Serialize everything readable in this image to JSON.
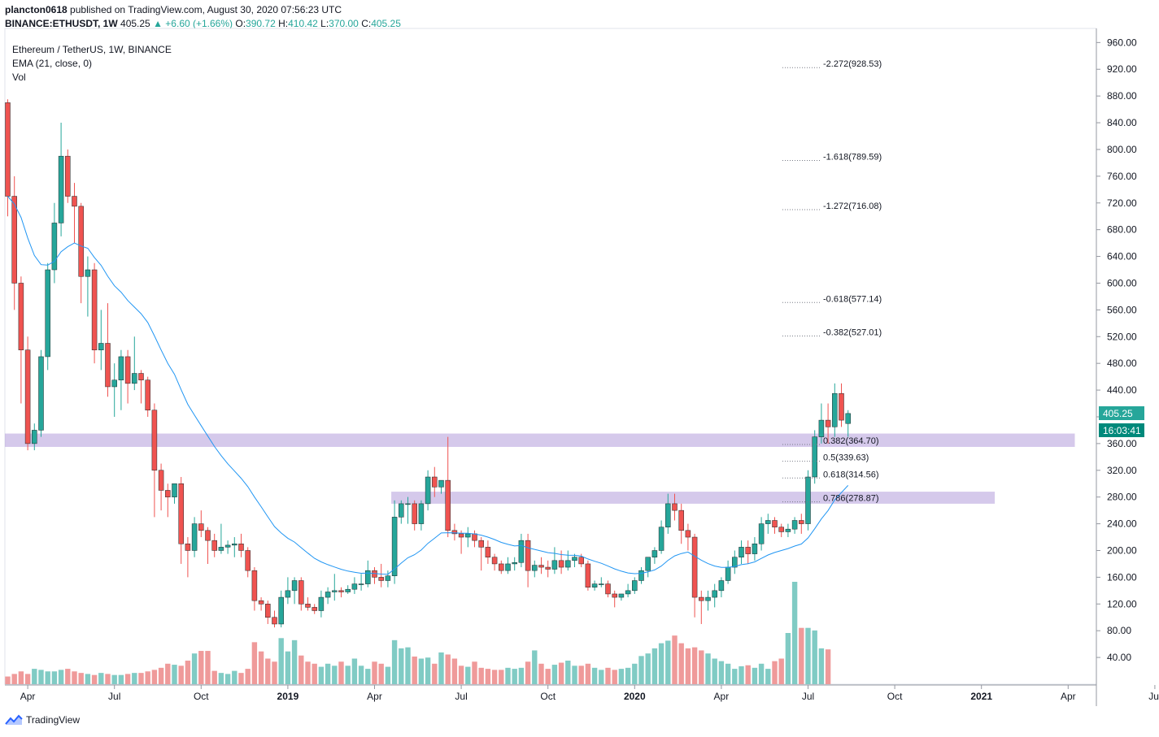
{
  "header": {
    "author": "plancton0618",
    "published_text": "published on TradingView.com, August 30, 2020 07:56:23 UTC",
    "symbol": "BINANCE:ETHUSDT, 1W",
    "last": "405.25",
    "change": "+6.60 (+1.66%)",
    "o_label": "O:",
    "o_value": "390.72",
    "h_label": "H:",
    "h_value": "410.42",
    "l_label": "L:",
    "l_value": "370.00",
    "c_label": "C:",
    "c_value": "405.25"
  },
  "legend": {
    "title": "Ethereum / TetherUS, 1W, BINANCE",
    "ema": "EMA (21, close, 0)",
    "vol": "Vol"
  },
  "price_badge": "405.25",
  "time_badge": "16:03:41",
  "footer": {
    "brand": "TradingView"
  },
  "colors": {
    "up": "#26a69a",
    "down": "#ef5350",
    "ema": "#2196f3",
    "zone": "#b39ddb",
    "upvol": "#80cbc4",
    "downvol": "#ef9a9a"
  },
  "chart_data": {
    "type": "candlestick",
    "y_ticks": [
      40,
      80,
      120,
      160,
      200,
      240,
      280,
      320,
      360,
      400,
      440,
      480,
      520,
      560,
      600,
      640,
      680,
      720,
      760,
      800,
      840,
      880,
      920,
      960
    ],
    "y_tick_labels": [
      "40.00",
      "80.00",
      "120.00",
      "160.00",
      "200.00",
      "240.00",
      "280.00",
      "320.00",
      "360.00",
      "400.00",
      "440.00",
      "480.00",
      "520.00",
      "560.00",
      "600.00",
      "640.00",
      "680.00",
      "720.00",
      "760.00",
      "800.00",
      "840.00",
      "880.00",
      "920.00",
      "960.00"
    ],
    "ylim": [
      0,
      975
    ],
    "x_ticks": [
      {
        "label": "Apr",
        "week": 3
      },
      {
        "label": "Jul",
        "week": 16
      },
      {
        "label": "Oct",
        "week": 29
      },
      {
        "label": "2019",
        "week": 42,
        "bold": true
      },
      {
        "label": "Apr",
        "week": 55
      },
      {
        "label": "Jul",
        "week": 68
      },
      {
        "label": "Oct",
        "week": 81
      },
      {
        "label": "2020",
        "week": 94,
        "bold": true
      },
      {
        "label": "Apr",
        "week": 107
      },
      {
        "label": "Jul",
        "week": 120
      },
      {
        "label": "Oct",
        "week": 133
      },
      {
        "label": "2021",
        "week": 146,
        "bold": true
      },
      {
        "label": "Apr",
        "week": 159
      },
      {
        "label": "Jul",
        "week": 172
      }
    ],
    "candles": [
      [
        870,
        875,
        700,
        730
      ],
      [
        730,
        760,
        560,
        600
      ],
      [
        600,
        610,
        420,
        500
      ],
      [
        500,
        520,
        350,
        360
      ],
      [
        360,
        390,
        350,
        380
      ],
      [
        380,
        500,
        370,
        490
      ],
      [
        490,
        630,
        470,
        620
      ],
      [
        620,
        720,
        600,
        690
      ],
      [
        690,
        840,
        670,
        790
      ],
      [
        790,
        800,
        720,
        730
      ],
      [
        730,
        750,
        660,
        715
      ],
      [
        715,
        720,
        570,
        610
      ],
      [
        610,
        640,
        550,
        620
      ],
      [
        620,
        630,
        480,
        500
      ],
      [
        500,
        560,
        470,
        510
      ],
      [
        510,
        570,
        430,
        445
      ],
      [
        445,
        480,
        400,
        455
      ],
      [
        455,
        500,
        410,
        490
      ],
      [
        490,
        500,
        420,
        450
      ],
      [
        450,
        520,
        440,
        465
      ],
      [
        465,
        470,
        420,
        455
      ],
      [
        455,
        460,
        400,
        410
      ],
      [
        410,
        420,
        250,
        320
      ],
      [
        320,
        330,
        260,
        290
      ],
      [
        290,
        300,
        250,
        280
      ],
      [
        280,
        300,
        270,
        300
      ],
      [
        300,
        310,
        180,
        210
      ],
      [
        210,
        220,
        160,
        200
      ],
      [
        200,
        250,
        190,
        240
      ],
      [
        240,
        260,
        220,
        230
      ],
      [
        230,
        235,
        180,
        215
      ],
      [
        215,
        225,
        190,
        200
      ],
      [
        200,
        240,
        195,
        205
      ],
      [
        205,
        215,
        195,
        208
      ],
      [
        208,
        220,
        190,
        210
      ],
      [
        210,
        225,
        190,
        200
      ],
      [
        200,
        205,
        160,
        170
      ],
      [
        170,
        175,
        110,
        125
      ],
      [
        125,
        130,
        110,
        120
      ],
      [
        120,
        125,
        90,
        100
      ],
      [
        100,
        110,
        85,
        90
      ],
      [
        90,
        140,
        85,
        130
      ],
      [
        130,
        160,
        120,
        140
      ],
      [
        140,
        160,
        120,
        155
      ],
      [
        155,
        160,
        110,
        120
      ],
      [
        120,
        130,
        110,
        115
      ],
      [
        115,
        120,
        105,
        110
      ],
      [
        110,
        140,
        100,
        130
      ],
      [
        130,
        145,
        120,
        138
      ],
      [
        138,
        165,
        125,
        140
      ],
      [
        140,
        145,
        130,
        138
      ],
      [
        138,
        148,
        135,
        142
      ],
      [
        142,
        160,
        135,
        150
      ],
      [
        150,
        165,
        140,
        150
      ],
      [
        150,
        185,
        145,
        170
      ],
      [
        170,
        175,
        150,
        160
      ],
      [
        160,
        180,
        145,
        155
      ],
      [
        155,
        170,
        145,
        162
      ],
      [
        162,
        275,
        150,
        250
      ],
      [
        250,
        275,
        240,
        270
      ],
      [
        270,
        280,
        240,
        270
      ],
      [
        270,
        275,
        230,
        240
      ],
      [
        240,
        275,
        230,
        270
      ],
      [
        270,
        320,
        260,
        310
      ],
      [
        310,
        325,
        280,
        295
      ],
      [
        295,
        305,
        285,
        305
      ],
      [
        305,
        370,
        220,
        230
      ],
      [
        230,
        240,
        215,
        225
      ],
      [
        225,
        230,
        195,
        220
      ],
      [
        220,
        235,
        205,
        225
      ],
      [
        225,
        230,
        205,
        215
      ],
      [
        215,
        220,
        170,
        205
      ],
      [
        205,
        215,
        180,
        190
      ],
      [
        190,
        195,
        170,
        180
      ],
      [
        180,
        185,
        165,
        170
      ],
      [
        170,
        190,
        165,
        180
      ],
      [
        180,
        190,
        170,
        182
      ],
      [
        182,
        225,
        175,
        215
      ],
      [
        215,
        225,
        145,
        170
      ],
      [
        170,
        185,
        160,
        178
      ],
      [
        178,
        190,
        165,
        175
      ],
      [
        175,
        185,
        160,
        172
      ],
      [
        172,
        205,
        165,
        185
      ],
      [
        185,
        200,
        165,
        175
      ],
      [
        175,
        200,
        170,
        185
      ],
      [
        185,
        195,
        175,
        190
      ],
      [
        190,
        195,
        175,
        180
      ],
      [
        180,
        185,
        140,
        145
      ],
      [
        145,
        155,
        140,
        150
      ],
      [
        150,
        160,
        145,
        150
      ],
      [
        150,
        155,
        130,
        135
      ],
      [
        135,
        140,
        115,
        130
      ],
      [
        130,
        135,
        125,
        135
      ],
      [
        135,
        150,
        130,
        140
      ],
      [
        140,
        160,
        135,
        155
      ],
      [
        155,
        175,
        150,
        170
      ],
      [
        170,
        185,
        160,
        190
      ],
      [
        190,
        205,
        180,
        200
      ],
      [
        200,
        245,
        195,
        235
      ],
      [
        235,
        285,
        225,
        270
      ],
      [
        270,
        285,
        245,
        260
      ],
      [
        260,
        270,
        210,
        230
      ],
      [
        230,
        240,
        200,
        220
      ],
      [
        220,
        225,
        100,
        130
      ],
      [
        130,
        140,
        90,
        125
      ],
      [
        125,
        140,
        110,
        130
      ],
      [
        130,
        150,
        115,
        140
      ],
      [
        140,
        160,
        130,
        155
      ],
      [
        155,
        185,
        150,
        175
      ],
      [
        175,
        200,
        165,
        190
      ],
      [
        190,
        215,
        180,
        205
      ],
      [
        205,
        215,
        180,
        195
      ],
      [
        195,
        220,
        185,
        210
      ],
      [
        210,
        250,
        200,
        240
      ],
      [
        240,
        255,
        225,
        245
      ],
      [
        245,
        250,
        225,
        235
      ],
      [
        235,
        240,
        220,
        228
      ],
      [
        228,
        240,
        220,
        232
      ],
      [
        232,
        250,
        225,
        245
      ],
      [
        245,
        255,
        225,
        240
      ],
      [
        240,
        320,
        230,
        310
      ],
      [
        310,
        380,
        300,
        370
      ],
      [
        370,
        420,
        360,
        395
      ],
      [
        395,
        420,
        360,
        385
      ],
      [
        385,
        450,
        370,
        435
      ],
      [
        435,
        450,
        385,
        395
      ],
      [
        390,
        410,
        370,
        405
      ]
    ],
    "volume": [
      15,
      20,
      25,
      20,
      30,
      28,
      25,
      25,
      28,
      30,
      25,
      22,
      20,
      18,
      22,
      20,
      18,
      18,
      20,
      22,
      22,
      25,
      28,
      32,
      40,
      38,
      36,
      46,
      60,
      65,
      65,
      26,
      22,
      20,
      26,
      22,
      30,
      82,
      64,
      50,
      44,
      90,
      64,
      86,
      56,
      44,
      40,
      34,
      40,
      36,
      44,
      36,
      50,
      36,
      30,
      44,
      40,
      34,
      86,
      70,
      72,
      54,
      50,
      52,
      40,
      62,
      58,
      50,
      36,
      34,
      44,
      32,
      30,
      28,
      28,
      32,
      30,
      32,
      44,
      66,
      40,
      30,
      38,
      42,
      46,
      36,
      36,
      40,
      32,
      28,
      32,
      28,
      30,
      32,
      40,
      55,
      60,
      70,
      80,
      85,
      95,
      80,
      70,
      72,
      66,
      60,
      50,
      45,
      40,
      30,
      35,
      37,
      32,
      40,
      30,
      45,
      50,
      100,
      200,
      110,
      110,
      105,
      70,
      68
    ]
  },
  "fib_levels": [
    {
      "label": "-2.272(928.53)",
      "value": 928.53,
      "zone": "upper"
    },
    {
      "label": "-1.618(789.59)",
      "value": 789.59,
      "zone": "upper"
    },
    {
      "label": "-1.272(716.08)",
      "value": 716.08,
      "zone": "upper"
    },
    {
      "label": "-0.618(577.14)",
      "value": 577.14,
      "zone": "upper"
    },
    {
      "label": "-0.382(527.01)",
      "value": 527.01,
      "zone": "upper"
    },
    {
      "label": "0.382(364.70)",
      "value": 364.7,
      "zone": "lower"
    },
    {
      "label": "0.5(339.63)",
      "value": 339.63,
      "zone": "lower"
    },
    {
      "label": "0.618(314.56)",
      "value": 314.56,
      "zone": "lower"
    },
    {
      "label": "0.786(278.87)",
      "value": 278.87,
      "zone": "lower"
    }
  ],
  "zones": [
    {
      "from_week": 0,
      "to_week": 160,
      "low": 355,
      "high": 375
    },
    {
      "from_week": 58,
      "to_week": 148,
      "low": 270,
      "high": 288
    }
  ]
}
